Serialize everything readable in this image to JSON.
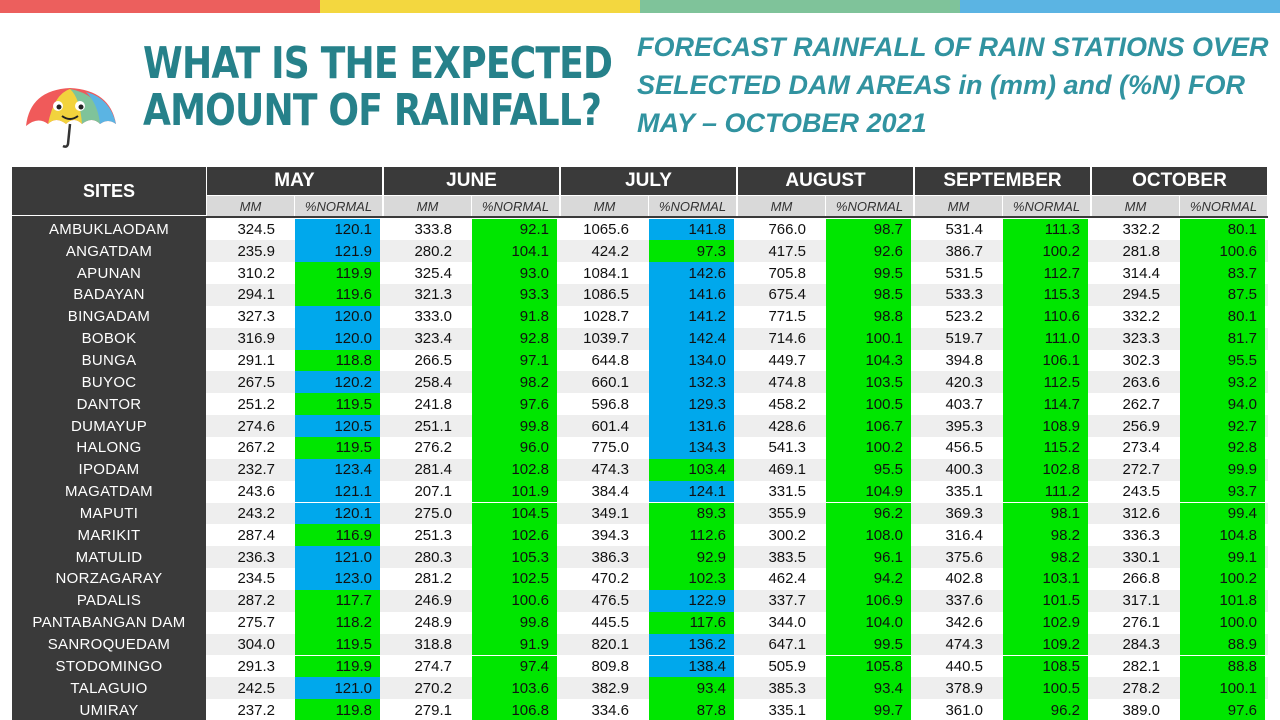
{
  "colors": {
    "topbar": [
      "#ec5f5d",
      "#f3d73f",
      "#7fc39a",
      "#5bb4e3"
    ],
    "header_bg": "#3a3a3a",
    "subheader_bg": "#d9d9d9",
    "green": "#00e600",
    "blue": "#00a8ec",
    "title": "#26818a",
    "subtitle": "#3193a0"
  },
  "title": {
    "line1": "WHAT IS THE EXPECTED",
    "line2": "AMOUNT OF RAINFALL?"
  },
  "subtitle": {
    "line1": "FORECAST RAINFALL OF RAIN STATIONS OVER",
    "line2": "SELECTED DAM AREAS in (mm) and (%N) FOR",
    "line3": "MAY – OCTOBER 2021"
  },
  "logo_icon": "umbrella-icon",
  "table": {
    "sites_header": "SITES",
    "sub_mm": "MM",
    "sub_pct": "%NORMAL",
    "months": [
      "MAY",
      "JUNE",
      "JULY",
      "AUGUST",
      "SEPTEMBER",
      "OCTOBER"
    ],
    "rows": [
      {
        "site": "AMBUKLAODAM",
        "values": [
          [
            "324.5",
            "120.1",
            "b"
          ],
          [
            "333.8",
            "92.1",
            "g"
          ],
          [
            "1065.6",
            "141.8",
            "b"
          ],
          [
            "766.0",
            "98.7",
            "g"
          ],
          [
            "531.4",
            "111.3",
            "g"
          ],
          [
            "332.2",
            "80.1",
            "g"
          ]
        ]
      },
      {
        "site": "ANGATDAM",
        "values": [
          [
            "235.9",
            "121.9",
            "b"
          ],
          [
            "280.2",
            "104.1",
            "g"
          ],
          [
            "424.2",
            "97.3",
            "g"
          ],
          [
            "417.5",
            "92.6",
            "g"
          ],
          [
            "386.7",
            "100.2",
            "g"
          ],
          [
            "281.8",
            "100.6",
            "g"
          ]
        ]
      },
      {
        "site": "APUNAN",
        "values": [
          [
            "310.2",
            "119.9",
            "g"
          ],
          [
            "325.4",
            "93.0",
            "g"
          ],
          [
            "1084.1",
            "142.6",
            "b"
          ],
          [
            "705.8",
            "99.5",
            "g"
          ],
          [
            "531.5",
            "112.7",
            "g"
          ],
          [
            "314.4",
            "83.7",
            "g"
          ]
        ]
      },
      {
        "site": "BADAYAN",
        "values": [
          [
            "294.1",
            "119.6",
            "g"
          ],
          [
            "321.3",
            "93.3",
            "g"
          ],
          [
            "1086.5",
            "141.6",
            "b"
          ],
          [
            "675.4",
            "98.5",
            "g"
          ],
          [
            "533.3",
            "115.3",
            "g"
          ],
          [
            "294.5",
            "87.5",
            "g"
          ]
        ]
      },
      {
        "site": "BINGADAM",
        "values": [
          [
            "327.3",
            "120.0",
            "b"
          ],
          [
            "333.0",
            "91.8",
            "g"
          ],
          [
            "1028.7",
            "141.2",
            "b"
          ],
          [
            "771.5",
            "98.8",
            "g"
          ],
          [
            "523.2",
            "110.6",
            "g"
          ],
          [
            "332.2",
            "80.1",
            "g"
          ]
        ]
      },
      {
        "site": "BOBOK",
        "values": [
          [
            "316.9",
            "120.0",
            "b"
          ],
          [
            "323.4",
            "92.8",
            "g"
          ],
          [
            "1039.7",
            "142.4",
            "b"
          ],
          [
            "714.6",
            "100.1",
            "g"
          ],
          [
            "519.7",
            "111.0",
            "g"
          ],
          [
            "323.3",
            "81.7",
            "g"
          ]
        ]
      },
      {
        "site": "BUNGA",
        "values": [
          [
            "291.1",
            "118.8",
            "g"
          ],
          [
            "266.5",
            "97.1",
            "g"
          ],
          [
            "644.8",
            "134.0",
            "b"
          ],
          [
            "449.7",
            "104.3",
            "g"
          ],
          [
            "394.8",
            "106.1",
            "g"
          ],
          [
            "302.3",
            "95.5",
            "g"
          ]
        ]
      },
      {
        "site": "BUYOC",
        "values": [
          [
            "267.5",
            "120.2",
            "b"
          ],
          [
            "258.4",
            "98.2",
            "g"
          ],
          [
            "660.1",
            "132.3",
            "b"
          ],
          [
            "474.8",
            "103.5",
            "g"
          ],
          [
            "420.3",
            "112.5",
            "g"
          ],
          [
            "263.6",
            "93.2",
            "g"
          ]
        ]
      },
      {
        "site": "DANTOR",
        "values": [
          [
            "251.2",
            "119.5",
            "g"
          ],
          [
            "241.8",
            "97.6",
            "g"
          ],
          [
            "596.8",
            "129.3",
            "b"
          ],
          [
            "458.2",
            "100.5",
            "g"
          ],
          [
            "403.7",
            "114.7",
            "g"
          ],
          [
            "262.7",
            "94.0",
            "g"
          ]
        ]
      },
      {
        "site": "DUMAYUP",
        "values": [
          [
            "274.6",
            "120.5",
            "b"
          ],
          [
            "251.1",
            "99.8",
            "g"
          ],
          [
            "601.4",
            "131.6",
            "b"
          ],
          [
            "428.6",
            "106.7",
            "g"
          ],
          [
            "395.3",
            "108.9",
            "g"
          ],
          [
            "256.9",
            "92.7",
            "g"
          ]
        ]
      },
      {
        "site": "HALONG",
        "values": [
          [
            "267.2",
            "119.5",
            "g"
          ],
          [
            "276.2",
            "96.0",
            "g"
          ],
          [
            "775.0",
            "134.3",
            "b"
          ],
          [
            "541.3",
            "100.2",
            "g"
          ],
          [
            "456.5",
            "115.2",
            "g"
          ],
          [
            "273.4",
            "92.8",
            "g"
          ]
        ]
      },
      {
        "site": "IPODAM",
        "values": [
          [
            "232.7",
            "123.4",
            "b"
          ],
          [
            "281.4",
            "102.8",
            "g"
          ],
          [
            "474.3",
            "103.4",
            "g"
          ],
          [
            "469.1",
            "95.5",
            "g"
          ],
          [
            "400.3",
            "102.8",
            "g"
          ],
          [
            "272.7",
            "99.9",
            "g"
          ]
        ]
      },
      {
        "site": "MAGATDAM",
        "values": [
          [
            "243.6",
            "121.1",
            "b"
          ],
          [
            "207.1",
            "101.9",
            "g"
          ],
          [
            "384.4",
            "124.1",
            "b"
          ],
          [
            "331.5",
            "104.9",
            "g"
          ],
          [
            "335.1",
            "111.2",
            "g"
          ],
          [
            "243.5",
            "93.7",
            "g"
          ]
        ]
      },
      {
        "site": "MAPUTI",
        "values": [
          [
            "243.2",
            "120.1",
            "b"
          ],
          [
            "275.0",
            "104.5",
            "g"
          ],
          [
            "349.1",
            "89.3",
            "g"
          ],
          [
            "355.9",
            "96.2",
            "g"
          ],
          [
            "369.3",
            "98.1",
            "g"
          ],
          [
            "312.6",
            "99.4",
            "g"
          ]
        ]
      },
      {
        "site": "MARIKIT",
        "values": [
          [
            "287.4",
            "116.9",
            "g"
          ],
          [
            "251.3",
            "102.6",
            "g"
          ],
          [
            "394.3",
            "112.6",
            "g"
          ],
          [
            "300.2",
            "108.0",
            "g"
          ],
          [
            "316.4",
            "98.2",
            "g"
          ],
          [
            "336.3",
            "104.8",
            "g"
          ]
        ]
      },
      {
        "site": "MATULID",
        "values": [
          [
            "236.3",
            "121.0",
            "b"
          ],
          [
            "280.3",
            "105.3",
            "g"
          ],
          [
            "386.3",
            "92.9",
            "g"
          ],
          [
            "383.5",
            "96.1",
            "g"
          ],
          [
            "375.6",
            "98.2",
            "g"
          ],
          [
            "330.1",
            "99.1",
            "g"
          ]
        ]
      },
      {
        "site": "NORZAGARAY",
        "values": [
          [
            "234.5",
            "123.0",
            "b"
          ],
          [
            "281.2",
            "102.5",
            "g"
          ],
          [
            "470.2",
            "102.3",
            "g"
          ],
          [
            "462.4",
            "94.2",
            "g"
          ],
          [
            "402.8",
            "103.1",
            "g"
          ],
          [
            "266.8",
            "100.2",
            "g"
          ]
        ]
      },
      {
        "site": "PADALIS",
        "values": [
          [
            "287.2",
            "117.7",
            "g"
          ],
          [
            "246.9",
            "100.6",
            "g"
          ],
          [
            "476.5",
            "122.9",
            "b"
          ],
          [
            "337.7",
            "106.9",
            "g"
          ],
          [
            "337.6",
            "101.5",
            "g"
          ],
          [
            "317.1",
            "101.8",
            "g"
          ]
        ]
      },
      {
        "site": "PANTABANGAN DAM",
        "values": [
          [
            "275.7",
            "118.2",
            "g"
          ],
          [
            "248.9",
            "99.8",
            "g"
          ],
          [
            "445.5",
            "117.6",
            "g"
          ],
          [
            "344.0",
            "104.0",
            "g"
          ],
          [
            "342.6",
            "102.9",
            "g"
          ],
          [
            "276.1",
            "100.0",
            "g"
          ]
        ]
      },
      {
        "site": "SANROQUEDAM",
        "values": [
          [
            "304.0",
            "119.5",
            "g"
          ],
          [
            "318.8",
            "91.9",
            "g"
          ],
          [
            "820.1",
            "136.2",
            "b"
          ],
          [
            "647.1",
            "99.5",
            "g"
          ],
          [
            "474.3",
            "109.2",
            "g"
          ],
          [
            "284.3",
            "88.9",
            "g"
          ]
        ]
      },
      {
        "site": "STODOMINGO",
        "values": [
          [
            "291.3",
            "119.9",
            "g"
          ],
          [
            "274.7",
            "97.4",
            "g"
          ],
          [
            "809.8",
            "138.4",
            "b"
          ],
          [
            "505.9",
            "105.8",
            "g"
          ],
          [
            "440.5",
            "108.5",
            "g"
          ],
          [
            "282.1",
            "88.8",
            "g"
          ]
        ]
      },
      {
        "site": "TALAGUIO",
        "values": [
          [
            "242.5",
            "121.0",
            "b"
          ],
          [
            "270.2",
            "103.6",
            "g"
          ],
          [
            "382.9",
            "93.4",
            "g"
          ],
          [
            "385.3",
            "93.4",
            "g"
          ],
          [
            "378.9",
            "100.5",
            "g"
          ],
          [
            "278.2",
            "100.1",
            "g"
          ]
        ]
      },
      {
        "site": "UMIRAY",
        "values": [
          [
            "237.2",
            "119.8",
            "g"
          ],
          [
            "279.1",
            "106.8",
            "g"
          ],
          [
            "334.6",
            "87.8",
            "g"
          ],
          [
            "335.1",
            "99.7",
            "g"
          ],
          [
            "361.0",
            "96.2",
            "g"
          ],
          [
            "389.0",
            "97.6",
            "g"
          ]
        ]
      }
    ]
  }
}
